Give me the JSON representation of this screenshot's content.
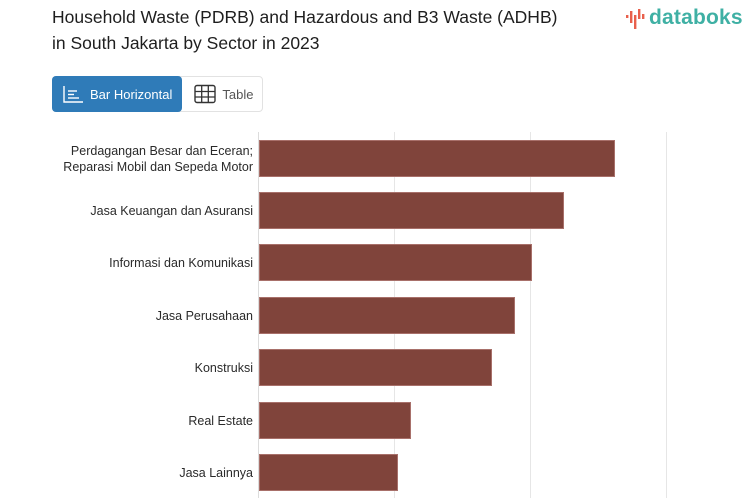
{
  "header": {
    "title": "Household Waste (PDRB) and Hazardous and B3 Waste (ADHB) in South Jakarta by Sector in 2023",
    "logo_text": "databoks",
    "logo_icon": "databoks-bars-icon"
  },
  "view_toggle": {
    "options": [
      {
        "label": "Bar Horizontal",
        "icon": "bar-horizontal-icon",
        "active": true
      },
      {
        "label": "Table",
        "icon": "table-grid-icon",
        "active": false
      }
    ]
  },
  "colors": {
    "bar": "#80443b",
    "active_toggle": "#2f7bb8",
    "logo_teal": "#3fb0a4",
    "logo_red": "#e8604c"
  },
  "chart_data": {
    "type": "bar",
    "orientation": "horizontal",
    "title": "Household Waste (PDRB) and Hazardous and B3 Waste (ADHB) in South Jakarta by Sector in 2023",
    "categories": [
      "Perdagangan Besar dan Eceran; Reparasi Mobil dan Sepeda Motor",
      "Jasa Keuangan dan Asuransi",
      "Informasi dan Komunikasi",
      "Jasa Perusahaan",
      "Konstruksi",
      "Real Estate",
      "Jasa Lainnya"
    ],
    "values": [
      2.62,
      2.24,
      2.01,
      1.88,
      1.71,
      1.12,
      1.02
    ],
    "value_units": "relative to gridline spacing (axis tick labels not visible)",
    "xlabel": "",
    "ylabel": "",
    "xlim": [
      0,
      3
    ],
    "gridlines": [
      0,
      1,
      2,
      3
    ],
    "grid": true,
    "legend": null
  }
}
